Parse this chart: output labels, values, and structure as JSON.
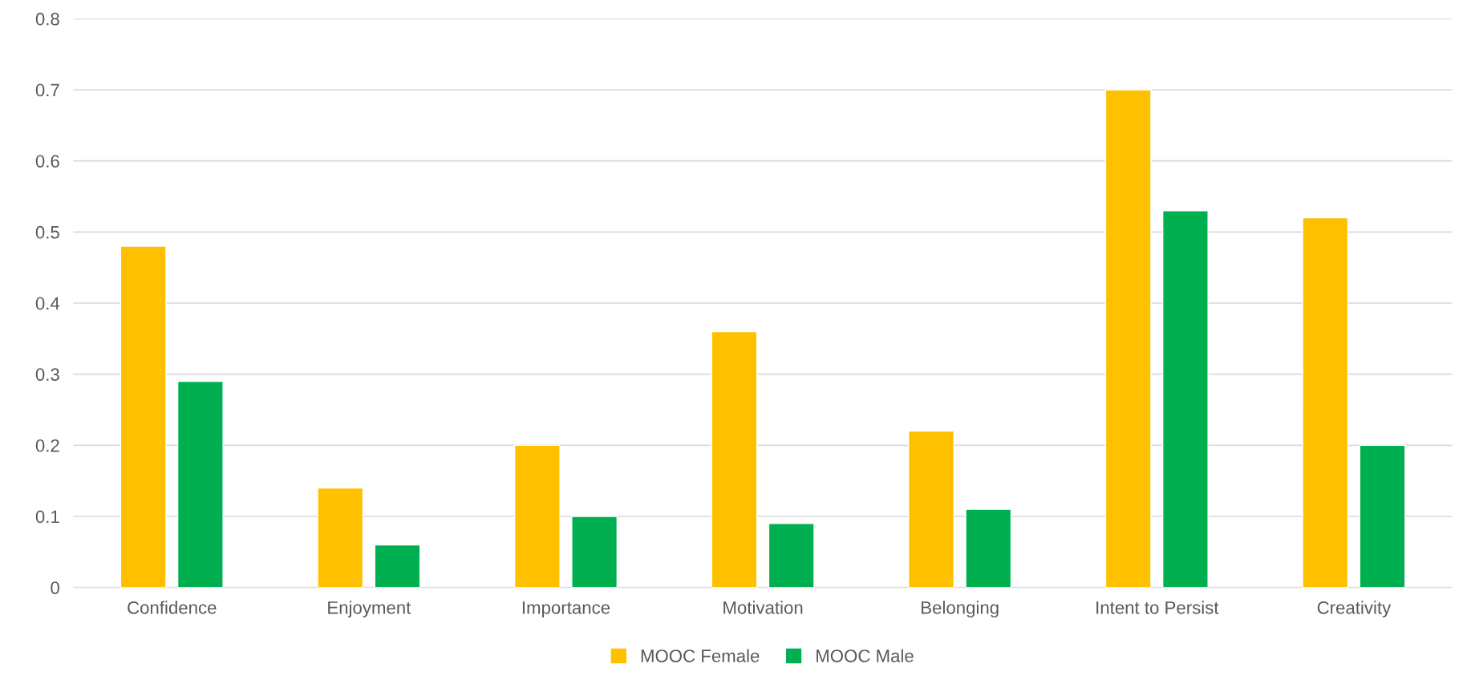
{
  "chart_data": {
    "type": "bar",
    "categories": [
      "Confidence",
      "Enjoyment",
      "Importance",
      "Motivation",
      "Belonging",
      "Intent to Persist",
      "Creativity"
    ],
    "series": [
      {
        "name": "MOOC Female",
        "color": "#ffc000",
        "values": [
          0.48,
          0.14,
          0.2,
          0.36,
          0.22,
          0.7,
          0.52
        ]
      },
      {
        "name": "MOOC Male",
        "color": "#00b050",
        "values": [
          0.29,
          0.06,
          0.1,
          0.09,
          0.11,
          0.53,
          0.2
        ]
      }
    ],
    "ylim": [
      0,
      0.8
    ],
    "yticks": [
      0,
      0.1,
      0.2,
      0.3,
      0.4,
      0.5,
      0.6,
      0.7,
      0.8
    ],
    "grid": "y",
    "legend": "bottom"
  }
}
